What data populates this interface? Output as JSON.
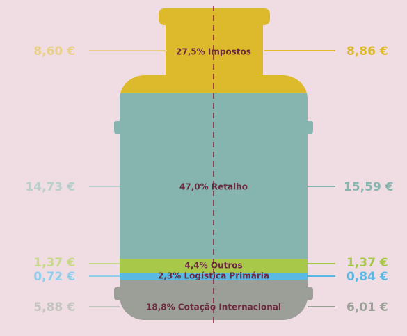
{
  "segments": [
    {
      "label": "27,5% Impostos",
      "left": "8,60 €",
      "right": "8,86 €"
    },
    {
      "label": "47,0% Retalho",
      "left": "14,73 €",
      "right": "15,59 €"
    },
    {
      "label": "4,4% Outros",
      "left": "1,37 €",
      "right": "1,37 €"
    },
    {
      "label": "2,3% Logística Primária",
      "left": "0,72 €",
      "right": "0,84 €"
    },
    {
      "label": "18,8% Cotação Internacional",
      "left": "5,88 €",
      "right": "6,01 €"
    }
  ]
}
